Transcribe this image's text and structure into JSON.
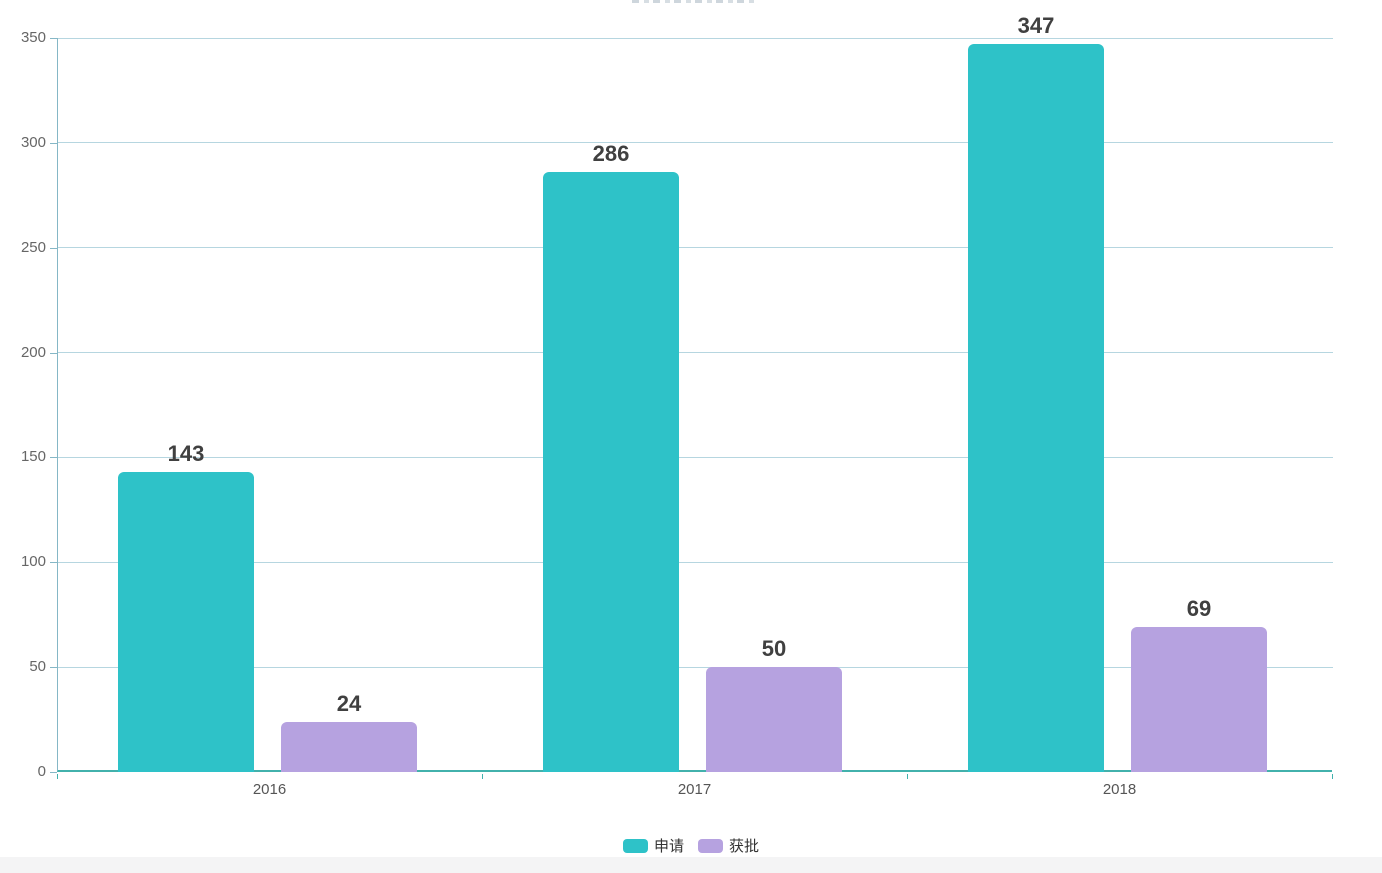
{
  "chart_data": {
    "type": "bar",
    "title": "",
    "categories": [
      "2016",
      "2017",
      "2018"
    ],
    "series": [
      {
        "name": "申请",
        "color": "#2ec2c8",
        "values": [
          143,
          286,
          347
        ]
      },
      {
        "name": "获批",
        "color": "#b6a2e0",
        "values": [
          24,
          50,
          69
        ]
      }
    ],
    "ylim": [
      0,
      350
    ],
    "ytick_step": 50,
    "ytick_labels": [
      "0",
      "50",
      "100",
      "150",
      "200",
      "250",
      "300",
      "350"
    ],
    "grid": true,
    "value_labels_shown": true,
    "legend_position": "bottom",
    "legend_entries": [
      "申请",
      "获批"
    ]
  },
  "colors": {
    "bar_apply": "#2ec2c8",
    "bar_approve": "#b6a2e0",
    "x_axis": "#42b1ac",
    "y_axis": "#85b7c6",
    "gridline": "#9ec8d5",
    "value_text": "#404040",
    "axis_text": "#666666",
    "background": "#ffffff",
    "bottom_strip": "#f4f4f5"
  }
}
